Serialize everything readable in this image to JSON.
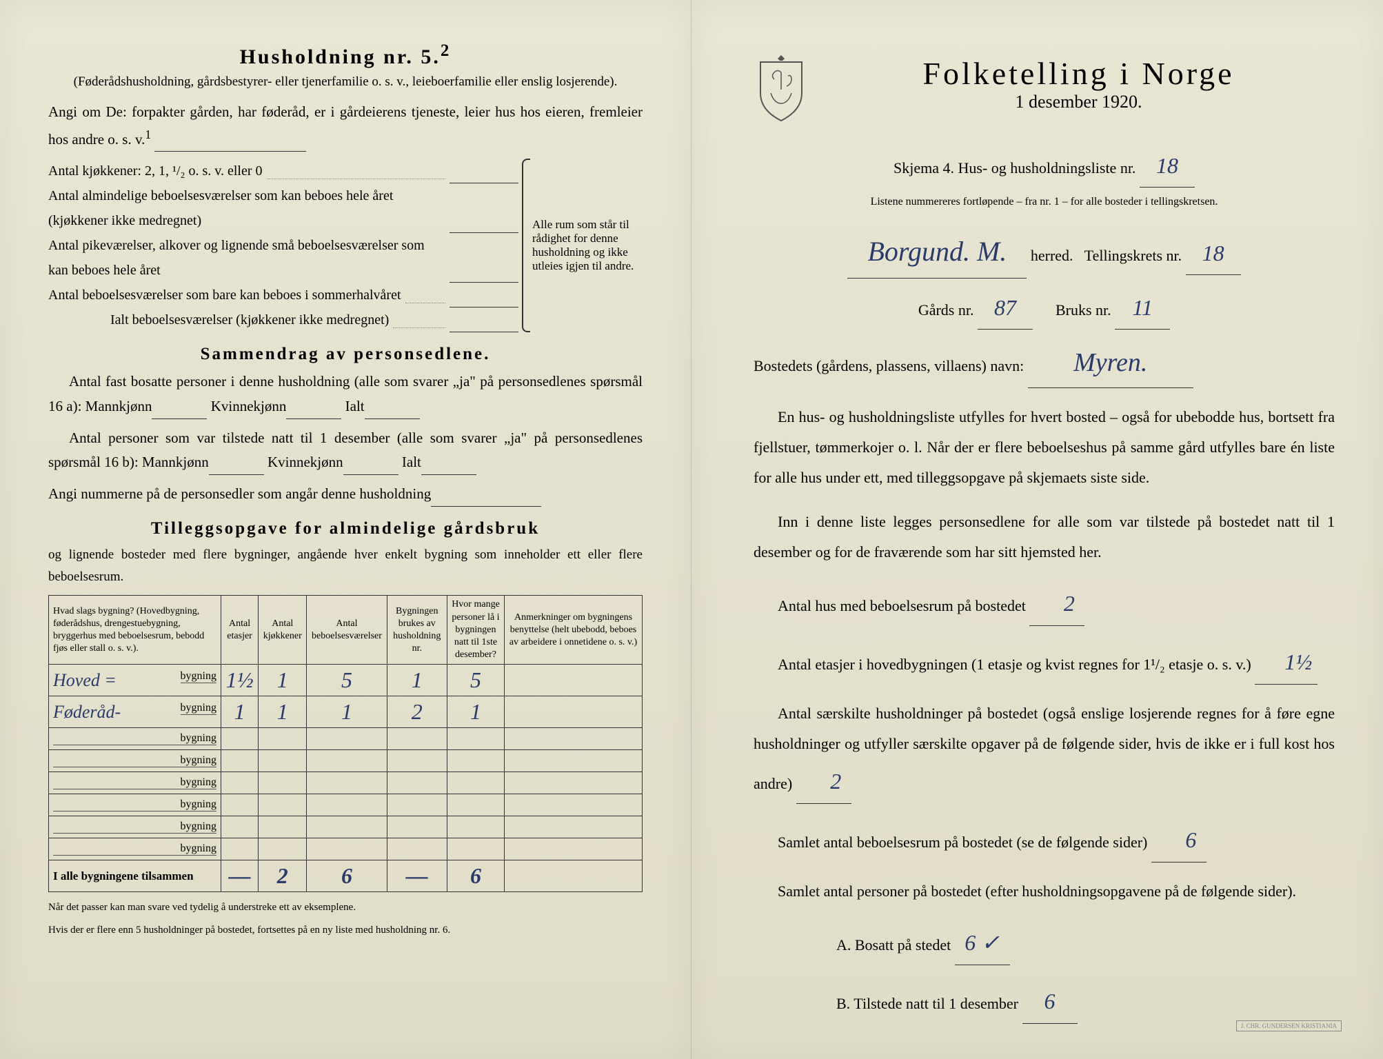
{
  "left": {
    "householdTitle": "Husholdning nr. 5.",
    "householdSup": "2",
    "householdSubtitle": "(Føderådshusholdning, gårdsbestyrer- eller tjenerfamilie o. s. v., leieboerfamilie eller enslig losjerende).",
    "angiLine": "Angi om De: forpakter gården, har føderåd, er i gårdeierens tjeneste, leier hus hos eieren, fremleier hos andre o. s. v.",
    "angiSup": "1",
    "kitchenLine": "Antal kjøkkener: 2, 1, ¹/₂ o. s. v. eller 0",
    "rooms1": "Antal almindelige beboelsesværelser som kan beboes hele året (kjøkkener ikke medregnet)",
    "rooms2": "Antal pikeværelser, alkover og lignende små beboelsesværelser som kan beboes hele året",
    "rooms3": "Antal beboelsesværelser som bare kan beboes i sommerhalvåret",
    "totalRooms": "Ialt beboelsesværelser (kjøkkener ikke medregnet)",
    "braceText": "Alle rum som står til rådighet for denne husholdning og ikke utleies igjen til andre.",
    "summaryTitle": "Sammendrag av personsedlene.",
    "summary1": "Antal fast bosatte personer i denne husholdning (alle som svarer „ja\" på personsedlenes spørsmål 16 a): Mannkjønn",
    "kvinnekjonn": "Kvinnekjønn",
    "ialt": "Ialt",
    "summary2": "Antal personer som var tilstede natt til 1 desember (alle som svarer „ja\" på personsedlenes spørsmål 16 b): Mannkjønn",
    "summary3": "Angi nummerne på de personsedler som angår denne husholdning",
    "addendumTitle": "Tilleggsopgave for almindelige gårdsbruk",
    "addendumText": "og lignende bosteder med flere bygninger, angående hver enkelt bygning som inneholder ett eller flere beboelsesrum.",
    "tableHeaders": {
      "col1": "Hvad slags bygning?\n(Hovedbygning, føderådshus, drengestuebygning, bryggerhus med beboelsesrum, bebodd fjøs eller stall o. s. v.).",
      "col2": "Antal etasjer",
      "col3": "Antal kjøkkener",
      "col4": "Antal beboelsesværelser",
      "col5": "Bygningen brukes av husholdning nr.",
      "col6": "Hvor mange personer lå i bygningen natt til 1ste desember?",
      "col7": "Anmerkninger om bygningens benyttelse (helt ubebodd, beboes av arbeidere i onnetidene o. s. v.)"
    },
    "tableRows": [
      {
        "label": "Hoved =",
        "suffix": "bygning",
        "v": [
          "1½",
          "1",
          "5",
          "1",
          "5",
          ""
        ]
      },
      {
        "label": "Føderåd-",
        "suffix": "bygning",
        "v": [
          "1",
          "1",
          "1",
          "2",
          "1",
          ""
        ]
      },
      {
        "label": "",
        "suffix": "bygning",
        "v": [
          "",
          "",
          "",
          "",
          "",
          ""
        ]
      },
      {
        "label": "",
        "suffix": "bygning",
        "v": [
          "",
          "",
          "",
          "",
          "",
          ""
        ]
      },
      {
        "label": "",
        "suffix": "bygning",
        "v": [
          "",
          "",
          "",
          "",
          "",
          ""
        ]
      },
      {
        "label": "",
        "suffix": "bygning",
        "v": [
          "",
          "",
          "",
          "",
          "",
          ""
        ]
      },
      {
        "label": "",
        "suffix": "bygning",
        "v": [
          "",
          "",
          "",
          "",
          "",
          ""
        ]
      },
      {
        "label": "",
        "suffix": "bygning",
        "v": [
          "",
          "",
          "",
          "",
          "",
          ""
        ]
      }
    ],
    "tableTotalLabel": "I alle bygningene tilsammen",
    "tableTotals": [
      "—",
      "2",
      "6",
      "—",
      "6",
      ""
    ],
    "footnote1": "Når det passer kan man svare ved tydelig å understreke ett av eksemplene.",
    "footnote2": "Hvis der er flere enn 5 husholdninger på bostedet, fortsettes på en ny liste med husholdning nr. 6."
  },
  "right": {
    "mainTitle": "Folketelling i Norge",
    "dateLine": "1 desember 1920.",
    "formLabel": "Skjema 4.  Hus- og husholdningsliste nr.",
    "formNr": "18",
    "listNote": "Listene nummereres fortløpende – fra nr. 1 – for alle bosteder i tellingskretsen.",
    "herredValue": "Borgund. M.",
    "herredLabel": "herred.",
    "tellingsLabel": "Tellingskrets nr.",
    "tellingsNr": "18",
    "gardsLabel": "Gårds nr.",
    "gardsNr": "87",
    "bruksLabel": "Bruks nr.",
    "bruksNr": "11",
    "bostedLabel": "Bostedets (gårdens, plassens, villaens) navn:",
    "bostedValue": "Myren.",
    "para1": "En hus- og husholdningsliste utfylles for hvert bosted – også for ubebodde hus, bortsett fra fjellstuer, tømmerkojer o. l.  Når der er flere beboelseshus på samme gård utfylles bare én liste for alle hus under ett, med tilleggsopgave på skjemaets siste side.",
    "para2": "Inn i denne liste legges personsedlene for alle som var tilstede på bostedet natt til 1 desember og for de fraværende som har sitt hjemsted her.",
    "q1Label": "Antal hus med beboelsesrum på bostedet",
    "q1Value": "2",
    "q2Label": "Antal etasjer i hovedbygningen (1 etasje og kvist regnes for 1¹/₂ etasje o. s. v.)",
    "q2Value": "1½",
    "q3Label": "Antal særskilte husholdninger på bostedet (også enslige losjerende regnes for å føre egne husholdninger og utfyller særskilte opgaver på de følgende sider, hvis de ikke er i full kost hos andre)",
    "q3Value": "2",
    "q4Label": "Samlet antal beboelsesrum på bostedet (se de følgende sider)",
    "q4Value": "6",
    "q5Label": "Samlet antal personer på bostedet (efter husholdningsopgavene på de følgende sider).",
    "q5aLabel": "A. Bosatt på stedet",
    "q5aValue": "6 ✓",
    "q5bLabel": "B. Tilstede natt til 1 desember",
    "q5bValue": "6",
    "stamp": "J. CHR. GUNDERSEN\nKRISTIANIA"
  }
}
